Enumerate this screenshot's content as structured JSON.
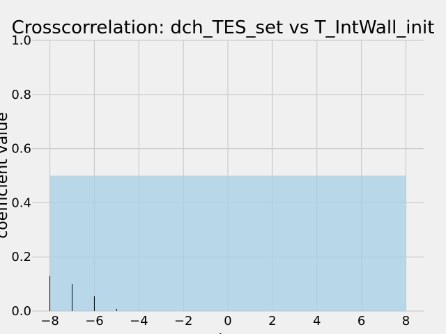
{
  "chart_data": {
    "type": "bar",
    "title": "Crosscorrelation: dch_TES_set vs T_IntWall_init",
    "xlabel": "lag",
    "ylabel": "coefficient value",
    "xlim": [
      -8.8,
      8.8
    ],
    "ylim": [
      0,
      1
    ],
    "x_ticks": [
      -8,
      -6,
      -4,
      -2,
      0,
      2,
      4,
      6,
      8
    ],
    "x_tick_labels": [
      "−8",
      "−6",
      "−4",
      "−2",
      "0",
      "2",
      "4",
      "6",
      "8"
    ],
    "y_ticks": [
      0.0,
      0.2,
      0.4,
      0.6,
      0.8,
      1.0
    ],
    "y_tick_labels": [
      "0.0",
      "0.2",
      "0.4",
      "0.6",
      "0.8",
      "1.0"
    ],
    "grid": true,
    "significance_band": {
      "x_range": [
        -8,
        8
      ],
      "upper": 0.5,
      "color": "#a6cfe6"
    },
    "bars": [
      {
        "lag": -8,
        "value": 0.13
      },
      {
        "lag": -7,
        "value": 0.1
      },
      {
        "lag": -6,
        "value": 0.055
      },
      {
        "lag": -5,
        "value": 0.008
      }
    ],
    "colors": {
      "background": "#f0f0f0",
      "grid": "#cbcbcb",
      "bar": "#000000"
    }
  }
}
